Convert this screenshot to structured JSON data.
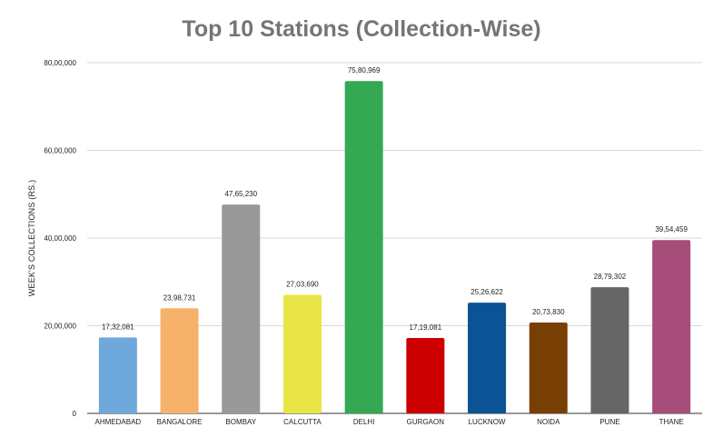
{
  "chart_data": {
    "type": "bar",
    "title": "Top 10 Stations (Collection-Wise)",
    "xlabel": "",
    "ylabel": "WEEK'S COLLECTIONS (RS.)",
    "ylim": [
      0,
      8000000
    ],
    "yticks": [
      {
        "value": 0,
        "label": "0"
      },
      {
        "value": 2000000,
        "label": "20,00,000"
      },
      {
        "value": 4000000,
        "label": "40,00,000"
      },
      {
        "value": 6000000,
        "label": "60,00,000"
      },
      {
        "value": 8000000,
        "label": "80,00,000"
      }
    ],
    "grid": true,
    "legend": "none",
    "bars": [
      {
        "category": "AHMEDABAD",
        "value": 1732081,
        "label": "17,32,081",
        "color": "#6fa8dc"
      },
      {
        "category": "BANGALORE",
        "value": 2398731,
        "label": "23,98,731",
        "color": "#f6b26b"
      },
      {
        "category": "BOMBAY",
        "value": 4765230,
        "label": "47,65,230",
        "color": "#999999"
      },
      {
        "category": "CALCUTTA",
        "value": 2703690,
        "label": "27,03,690",
        "color": "#eae546"
      },
      {
        "category": "DELHI",
        "value": 7580969,
        "label": "75,80,969",
        "color": "#34a853"
      },
      {
        "category": "GURGAON",
        "value": 1719081,
        "label": "17,19,081",
        "color": "#cc0000"
      },
      {
        "category": "LUCKNOW",
        "value": 2526622,
        "label": "25,26,622",
        "color": "#0b5394"
      },
      {
        "category": "NOIDA",
        "value": 2073830,
        "label": "20,73,830",
        "color": "#783f04"
      },
      {
        "category": "PUNE",
        "value": 2879302,
        "label": "28,79,302",
        "color": "#666666"
      },
      {
        "category": "THANE",
        "value": 3954459,
        "label": "39,54,459",
        "color": "#a64d79"
      }
    ]
  }
}
